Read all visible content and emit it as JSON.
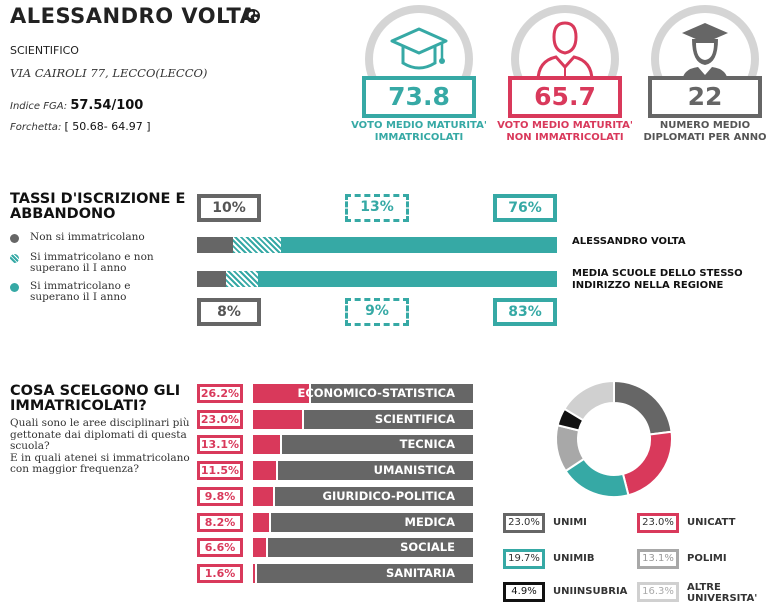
{
  "school": {
    "name": "ALESSANDRO VOLTA",
    "type": "SCIENTIFICO",
    "address": "VIA CAIROLI 77, LECCO(LECCO)",
    "fga_label": "Indice FGA:",
    "fga_value": "57.54/100",
    "range_label": "Forchetta:",
    "range_value": "[ 50.68- 64.97 ]"
  },
  "stats": [
    {
      "value": "73.8",
      "label_1": "VOTO MEDIO MATURITA'",
      "label_2": "IMMATRICOLATI",
      "color": "#36a9a5",
      "icon": "graduation-cap-icon"
    },
    {
      "value": "65.7",
      "label_1": "VOTO MEDIO MATURITA'",
      "label_2": "NON IMMATRICOLATI",
      "color": "#d9395b",
      "icon": "person-icon"
    },
    {
      "value": "22",
      "label_1": "NUMERO MEDIO",
      "label_2": "DIPLOMATI PER ANNO",
      "color": "#666666",
      "icon": "graduate-icon"
    }
  ],
  "enrollment": {
    "title_1": "TASSI D'ISCRIZIONE E",
    "title_2": "ABBANDONO",
    "legend": [
      {
        "text": "Non si immatricolano",
        "color": "#666666"
      },
      {
        "text": "Si immatricolano e non superano il I anno",
        "color": "#36a9a5"
      },
      {
        "text": "Si immatricolano e superano il I anno",
        "color": "#36a9a5"
      }
    ],
    "school_bar": {
      "label": "ALESSANDRO VOLTA",
      "values": [
        10,
        13,
        76
      ],
      "labels": [
        "10%",
        "13%",
        "76%"
      ]
    },
    "region_bar": {
      "label_1": "MEDIA SCUOLE DELLO STESSO",
      "label_2": "INDIRIZZO NELLA REGIONE",
      "values": [
        8,
        9,
        83
      ],
      "labels": [
        "8%",
        "9%",
        "83%"
      ]
    }
  },
  "choices": {
    "title_1": "COSA SCELGONO GLI",
    "title_2": "IMMATRICOLATI?",
    "desc_1": "Quali sono le aree disciplinari più",
    "desc_2": "gettonate dai diplomati di questa",
    "desc_3": "scuola?",
    "desc_4": "E in quali atenei si immatricolano",
    "desc_5": "con maggior frequenza?",
    "areas": [
      {
        "label": "26.2%",
        "name": "ECONOMICO-STATISTICA",
        "value": 26.2
      },
      {
        "label": "23.0%",
        "name": "SCIENTIFICA",
        "value": 23.0
      },
      {
        "label": "13.1%",
        "name": "TECNICA",
        "value": 13.1
      },
      {
        "label": "11.5%",
        "name": "UMANISTICA",
        "value": 11.5
      },
      {
        "label": "9.8%",
        "name": "GIURIDICO-POLITICA",
        "value": 9.8
      },
      {
        "label": "8.2%",
        "name": "MEDICA",
        "value": 8.2
      },
      {
        "label": "6.6%",
        "name": "SOCIALE",
        "value": 6.6
      },
      {
        "label": "1.6%",
        "name": "SANITARIA",
        "value": 1.6
      }
    ]
  },
  "universities": [
    {
      "label": "23.0%",
      "name": "UNIMI",
      "value": 23.0,
      "color": "#666666"
    },
    {
      "label": "23.0%",
      "name": "UNICATT",
      "value": 23.0,
      "color": "#d9395b"
    },
    {
      "label": "19.7%",
      "name": "UNIMIB",
      "value": 19.7,
      "color": "#36a9a5"
    },
    {
      "label": "13.1%",
      "name": "POLIMI",
      "value": 13.1,
      "color": "#a8a8a8"
    },
    {
      "label": "4.9%",
      "name": "UNIINSUBRIA",
      "value": 4.9,
      "color": "#111111"
    },
    {
      "label": "16.3%",
      "name_1": "ALTRE",
      "name_2": "UNIVERSITA'",
      "value": 16.3,
      "color": "#d0d0d0"
    }
  ]
}
